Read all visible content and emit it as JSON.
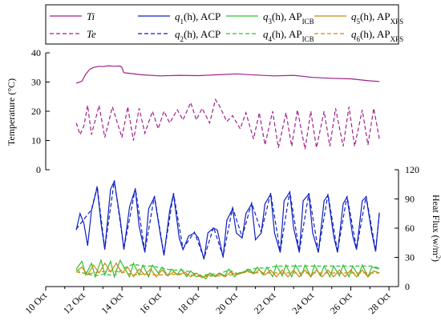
{
  "chart_data": {
    "type": "line",
    "xlabel": "",
    "x_ticks": [
      "10 Oct",
      "12 Oct",
      "14 Oct",
      "16 Oct",
      "18 Oct",
      "20 Oct",
      "22 Oct",
      "24 Oct",
      "26 Oct",
      "28 Oct"
    ],
    "x_range_days": [
      10,
      28.5
    ],
    "left_axis": {
      "label": "Temperature (°C)",
      "range": [
        0,
        40
      ],
      "ticks": [
        "0",
        "10",
        "20",
        "30",
        "40"
      ]
    },
    "right_axis": {
      "label": "Heat Flux (w/m²)",
      "range": [
        0,
        120
      ],
      "ticks": [
        "0",
        "30",
        "60",
        "90",
        "120"
      ]
    },
    "legend": [
      {
        "key": "Ti",
        "label": "Ti",
        "color": "#a0208a",
        "dash": "solid"
      },
      {
        "key": "q1",
        "label": "q1(h), ACP",
        "color": "#1020c0",
        "dash": "solid"
      },
      {
        "key": "q3",
        "label": "q3(h), AP_ICB",
        "color": "#30c030",
        "dash": "solid"
      },
      {
        "key": "q5",
        "label": "q5(h), AP_XPS",
        "color": "#c88a10",
        "dash": "solid"
      },
      {
        "key": "Te",
        "label": "Te",
        "color": "#a0208a",
        "dash": "dashed"
      },
      {
        "key": "q2",
        "label": "q2(h), ACP",
        "color": "#1020c0",
        "dash": "dashed"
      },
      {
        "key": "q4",
        "label": "q4(h), AP_ICB",
        "color": "#30c030",
        "dash": "dashed"
      },
      {
        "key": "q6",
        "label": "q6(h), AP_XPS",
        "color": "#c88a10",
        "dash": "dashed"
      }
    ],
    "series": [
      {
        "name": "Ti",
        "axis": "left",
        "color": "#a0208a",
        "dash": "solid",
        "x": [
          11.6,
          11.9,
          12.1,
          12.3,
          12.5,
          12.8,
          13.0,
          13.3,
          13.6,
          13.9,
          14.0,
          14.1,
          14.5,
          15.0,
          16.0,
          17.0,
          18.0,
          19.0,
          20.0,
          21.0,
          22.0,
          23.0,
          24.0,
          25.0,
          26.0,
          27.0,
          27.5
        ],
        "y": [
          29.6,
          30.3,
          32.7,
          34.3,
          35.0,
          35.4,
          35.3,
          35.6,
          35.4,
          35.5,
          35.0,
          33.2,
          32.9,
          32.5,
          32.1,
          32.3,
          32.2,
          32.5,
          32.8,
          32.4,
          32.1,
          32.3,
          31.6,
          31.3,
          31.1,
          30.4,
          30.2
        ]
      },
      {
        "name": "Te",
        "axis": "left",
        "color": "#a0208a",
        "dash": "dashed",
        "x": [
          11.6,
          11.8,
          12.0,
          12.2,
          12.4,
          12.8,
          13.1,
          13.5,
          14.0,
          14.3,
          14.6,
          14.9,
          15.2,
          15.6,
          15.9,
          16.2,
          16.5,
          16.9,
          17.2,
          17.6,
          17.9,
          18.2,
          18.6,
          18.9,
          19.1,
          19.5,
          19.8,
          20.2,
          20.5,
          20.9,
          21.2,
          21.5,
          21.9,
          22.2,
          22.6,
          22.9,
          23.2,
          23.6,
          23.9,
          24.2,
          24.6,
          24.9,
          25.2,
          25.6,
          25.9,
          26.2,
          26.6,
          26.9,
          27.2,
          27.5
        ],
        "y": [
          16.0,
          12.0,
          15.0,
          22.0,
          12.0,
          22.0,
          11.0,
          21.5,
          11.0,
          21.5,
          10.0,
          21.0,
          12.5,
          20.0,
          14.0,
          20.0,
          16.0,
          20.5,
          17.0,
          23.0,
          17.0,
          21.0,
          16.0,
          24.0,
          22.0,
          16.5,
          18.5,
          14.0,
          19.5,
          10.5,
          19.5,
          8.5,
          20.0,
          7.5,
          19.5,
          8.0,
          20.5,
          7.0,
          20.0,
          7.5,
          20.0,
          8.0,
          21.0,
          8.0,
          21.5,
          8.0,
          20.5,
          8.5,
          21.0,
          10.5
        ]
      },
      {
        "name": "q1(h), ACP",
        "axis": "right",
        "color": "#1020c0",
        "dash": "solid",
        "x": [
          11.6,
          11.8,
          12.0,
          12.2,
          12.4,
          12.7,
          12.9,
          13.1,
          13.4,
          13.6,
          13.9,
          14.1,
          14.4,
          14.7,
          14.9,
          15.2,
          15.4,
          15.7,
          16.0,
          16.2,
          16.5,
          16.7,
          17.0,
          17.2,
          17.5,
          17.8,
          18.0,
          18.3,
          18.5,
          18.8,
          19.0,
          19.3,
          19.5,
          19.8,
          20.0,
          20.3,
          20.5,
          20.8,
          21.0,
          21.3,
          21.5,
          21.8,
          22.0,
          22.3,
          22.5,
          22.8,
          23.0,
          23.3,
          23.5,
          23.8,
          24.0,
          24.3,
          24.6,
          24.8,
          25.1,
          25.3,
          25.6,
          25.8,
          26.1,
          26.3,
          26.6,
          26.8,
          27.1,
          27.3,
          27.5
        ],
        "y": [
          58,
          75,
          65,
          42,
          78,
          102,
          65,
          38,
          100,
          108,
          70,
          38,
          82,
          100,
          62,
          35,
          80,
          92,
          55,
          32,
          78,
          95,
          50,
          38,
          52,
          55,
          50,
          28,
          55,
          60,
          58,
          30,
          68,
          80,
          55,
          50,
          75,
          85,
          48,
          55,
          85,
          95,
          55,
          35,
          88,
          97,
          60,
          35,
          88,
          95,
          55,
          35,
          88,
          94,
          52,
          35,
          85,
          92,
          52,
          38,
          88,
          92,
          55,
          36,
          76
        ]
      },
      {
        "name": "q2(h), ACP",
        "axis": "right",
        "color": "#1020c0",
        "dash": "dashed",
        "x": [
          11.6,
          12.4,
          12.7,
          13.1,
          13.6,
          14.1,
          14.7,
          15.2,
          15.7,
          16.2,
          16.7,
          17.2,
          17.8,
          18.3,
          18.8,
          19.3,
          19.8,
          20.3,
          20.8,
          21.3,
          21.8,
          22.3,
          22.8,
          23.3,
          23.8,
          24.3,
          24.8,
          25.3,
          25.8,
          26.3,
          26.8,
          27.3,
          27.5
        ],
        "y": [
          59,
          79,
          103,
          39,
          109,
          39,
          101,
          36,
          93,
          33,
          96,
          39,
          56,
          29,
          61,
          31,
          81,
          51,
          86,
          56,
          96,
          36,
          98,
          36,
          96,
          36,
          95,
          36,
          93,
          39,
          93,
          37,
          77
        ]
      },
      {
        "name": "q3(h), AP_ICB",
        "axis": "right",
        "color": "#30c030",
        "dash": "solid",
        "x": [
          11.6,
          11.9,
          12.1,
          12.4,
          12.6,
          12.9,
          13.1,
          13.4,
          13.6,
          13.9,
          14.1,
          14.4,
          14.6,
          14.9,
          15.1,
          15.4,
          15.6,
          15.9,
          16.1,
          16.4,
          16.6,
          16.9,
          17.1,
          17.4,
          17.6,
          17.9,
          18.1,
          18.4,
          18.6,
          18.9,
          19.1,
          19.4,
          19.6,
          19.9,
          20.1,
          20.4,
          20.6,
          20.9,
          21.1,
          21.4,
          21.6,
          21.9,
          22.1,
          22.4,
          22.6,
          22.9,
          23.1,
          23.4,
          23.6,
          23.9,
          24.1,
          24.4,
          24.6,
          24.9,
          25.1,
          25.4,
          25.6,
          25.9,
          26.1,
          26.4,
          26.6,
          26.9,
          27.1,
          27.5
        ],
        "y": [
          18,
          26,
          12,
          24,
          10,
          27,
          12,
          26,
          10,
          27,
          20,
          10,
          24,
          12,
          22,
          10,
          22,
          14,
          20,
          11,
          18,
          12,
          18,
          10,
          16,
          10,
          12,
          8,
          14,
          10,
          14,
          11,
          18,
          10,
          14,
          15,
          18,
          14,
          20,
          12,
          20,
          10,
          22,
          11,
          22,
          10,
          22,
          11,
          22,
          10,
          22,
          11,
          21,
          10,
          21,
          11,
          22,
          10,
          21,
          11,
          22,
          10,
          20,
          18
        ]
      },
      {
        "name": "q4(h), AP_ICB",
        "axis": "right",
        "color": "#30c030",
        "dash": "dashed",
        "x": [
          11.6,
          12.1,
          12.6,
          13.1,
          13.6,
          14.1,
          14.6,
          15.1,
          15.6,
          16.1,
          16.6,
          17.1,
          17.6,
          18.1,
          18.6,
          19.1,
          19.6,
          20.1,
          20.6,
          21.1,
          21.6,
          22.1,
          22.6,
          23.1,
          23.6,
          24.1,
          24.6,
          25.1,
          25.6,
          26.1,
          26.6,
          27.1,
          27.5
        ],
        "y": [
          17,
          13,
          11,
          13,
          11,
          19,
          23,
          21,
          21,
          19,
          17,
          17,
          15,
          11,
          13,
          13,
          17,
          13,
          17,
          19,
          19,
          21,
          21,
          21,
          21,
          21,
          21,
          21,
          21,
          21,
          21,
          21,
          19
        ]
      },
      {
        "name": "q5(h), AP_XPS",
        "axis": "right",
        "color": "#c88a10",
        "dash": "solid",
        "x": [
          11.6,
          11.9,
          12.2,
          12.5,
          12.8,
          13.1,
          13.4,
          13.7,
          14.0,
          14.3,
          14.6,
          14.9,
          15.2,
          15.5,
          15.8,
          16.1,
          16.4,
          16.7,
          17.0,
          17.3,
          17.6,
          17.9,
          18.2,
          18.5,
          18.8,
          19.1,
          19.4,
          19.7,
          20.0,
          20.3,
          20.6,
          20.9,
          21.2,
          21.5,
          21.8,
          22.1,
          22.4,
          22.7,
          23.0,
          23.3,
          23.6,
          23.9,
          24.2,
          24.5,
          24.8,
          25.1,
          25.4,
          25.7,
          26.0,
          26.3,
          26.6,
          26.9,
          27.2,
          27.5
        ],
        "y": [
          16,
          20,
          12,
          22,
          14,
          24,
          15,
          24,
          14,
          20,
          10,
          18,
          12,
          18,
          10,
          17,
          11,
          15,
          12,
          15,
          10,
          14,
          9,
          12,
          11,
          13,
          10,
          15,
          12,
          14,
          16,
          13,
          17,
          12,
          17,
          10,
          17,
          10,
          17,
          10,
          17,
          10,
          17,
          10,
          17,
          10,
          17,
          10,
          17,
          10,
          17,
          10,
          16,
          14
        ]
      },
      {
        "name": "q6(h), AP_XPS",
        "axis": "right",
        "color": "#c88a10",
        "dash": "dashed",
        "x": [
          11.6,
          12.2,
          12.8,
          13.4,
          14.0,
          14.6,
          15.2,
          15.8,
          16.4,
          17.0,
          17.6,
          18.2,
          18.8,
          19.4,
          20.0,
          20.6,
          21.2,
          21.8,
          22.4,
          23.0,
          23.6,
          24.2,
          24.8,
          25.4,
          26.0,
          26.6,
          27.2,
          27.5
        ],
        "y": [
          15,
          13,
          15,
          16,
          15,
          12,
          13,
          12,
          12,
          13,
          12,
          10,
          11,
          11,
          13,
          15,
          14,
          14,
          14,
          14,
          14,
          14,
          14,
          14,
          14,
          14,
          14,
          14
        ]
      }
    ],
    "grid": false,
    "legend_position": "top"
  }
}
